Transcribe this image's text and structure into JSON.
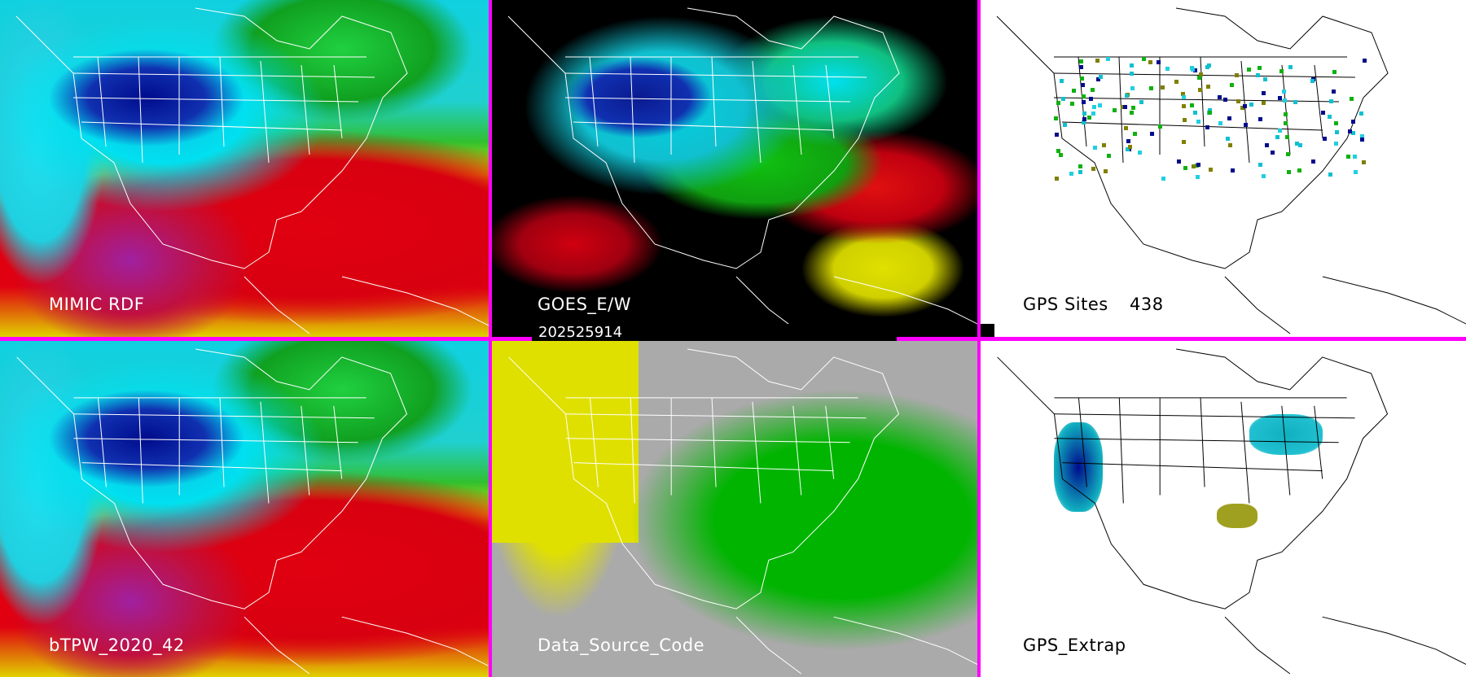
{
  "panels": [
    {
      "label": "MIMIC RDF",
      "type": "tpw-map"
    },
    {
      "label": "GOES_E/W",
      "type": "goes-map"
    },
    {
      "label": "GPS Sites",
      "count": "438",
      "type": "gps-sites-map"
    },
    {
      "label": "bTPW_2020_42",
      "type": "tpw-map"
    },
    {
      "label": "Data_Source_Code",
      "type": "source-code-map"
    },
    {
      "label": "GPS_Extrap",
      "type": "gps-extrap-map"
    }
  ],
  "timestamp": "202525914",
  "colors": {
    "border": "#ff00ff",
    "map_lines": "#ffffff",
    "gps_map_lines": "#000000"
  }
}
